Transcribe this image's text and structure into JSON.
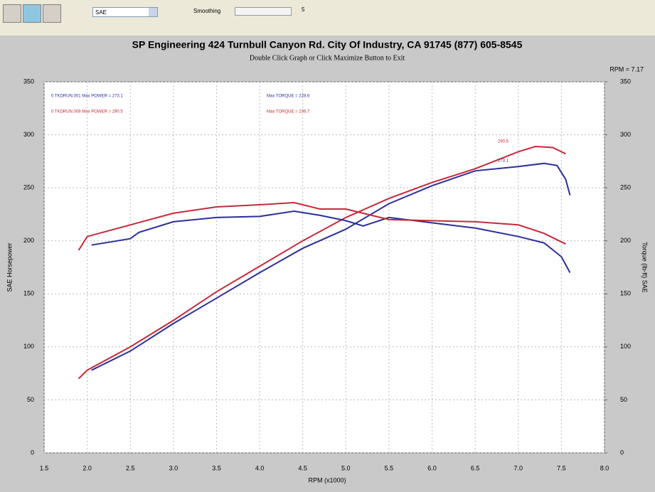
{
  "toolbar": {
    "units": "SAE",
    "smoothing_label": "Smoothing",
    "smoothing_value": "5"
  },
  "chart_data": {
    "type": "line",
    "title": "SP Engineering 424 Turnbull Canyon Rd. City Of Industry, CA 91745 (877) 605-8545",
    "subtitle": "Double Click Graph or Click Maximize Button to Exit",
    "cursor_readout": "RPM = 7.17",
    "x_label": "RPM (x1000)",
    "y_label": "SAE Horsepower",
    "y2_label": "Torque (lb-ft) SAE",
    "xlim": [
      1.5,
      8.0
    ],
    "xticks": [
      1.5,
      {
        "value": 2.0,
        "label": "2.0"
      },
      2.5,
      {
        "value": 3.0,
        "label": "3.0"
      },
      3.5,
      {
        "value": 4.0,
        "label": "4.0"
      },
      4.5,
      {
        "value": 5.0,
        "label": "5.0"
      },
      5.5,
      {
        "value": 6.0,
        "label": "6.0"
      },
      6.5,
      {
        "value": 7.0,
        "label": "7.0"
      },
      7.5,
      {
        "value": 8.0,
        "label": "8.0"
      }
    ],
    "ylim": [
      0,
      350
    ],
    "yticks": [
      0,
      50,
      100,
      150,
      200,
      250,
      300,
      350
    ],
    "y2lim": [
      0,
      350
    ],
    "y2ticks": [
      0,
      50,
      100,
      150,
      200,
      250,
      300,
      350
    ],
    "grid": true,
    "series": [
      {
        "name": "0 TKDRUN.001 Max POWER = 273.1",
        "color": "#2b2f9a",
        "x": [
          2.05,
          2.5,
          3.0,
          3.5,
          4.0,
          4.5,
          5.0,
          5.5,
          6.0,
          6.5,
          7.0,
          7.3,
          7.45,
          7.55,
          7.6
        ],
        "values": [
          78,
          96,
          122,
          146,
          170,
          193,
          211,
          235,
          252,
          266,
          270,
          273,
          271,
          258,
          243
        ]
      },
      {
        "name": "0 TKDRUN.008 Max POWER = 290.5",
        "color": "#c8283a",
        "x": [
          1.9,
          2.0,
          2.5,
          3.0,
          3.5,
          4.0,
          4.5,
          5.0,
          5.5,
          6.0,
          6.5,
          7.0,
          7.2,
          7.4,
          7.55
        ],
        "values": [
          70,
          78,
          100,
          125,
          152,
          176,
          200,
          222,
          240,
          255,
          268,
          284,
          289,
          288,
          282
        ]
      },
      {
        "name": "Max TORQUE = 228.6",
        "color": "#2b2f9a",
        "axis": "y2",
        "x": [
          2.05,
          2.5,
          2.6,
          3.0,
          3.5,
          4.0,
          4.4,
          4.7,
          5.0,
          5.2,
          5.5,
          6.0,
          6.5,
          7.0,
          7.3,
          7.5,
          7.6
        ],
        "values": [
          196,
          202,
          208,
          218,
          222,
          223,
          228,
          224,
          219,
          214,
          222,
          217,
          212,
          204,
          198,
          185,
          170
        ]
      },
      {
        "name": "Max TORQUE = 236.7",
        "color": "#c8283a",
        "axis": "y2",
        "x": [
          1.9,
          2.0,
          2.5,
          3.0,
          3.5,
          4.0,
          4.4,
          4.7,
          5.0,
          5.3,
          5.5,
          6.0,
          6.5,
          7.0,
          7.3,
          7.55
        ],
        "values": [
          191,
          204,
          215,
          226,
          232,
          234,
          236,
          230,
          230,
          224,
          220,
          219,
          218,
          215,
          207,
          197
        ]
      }
    ],
    "peak_labels": [
      "273.1",
      "290.5"
    ]
  }
}
